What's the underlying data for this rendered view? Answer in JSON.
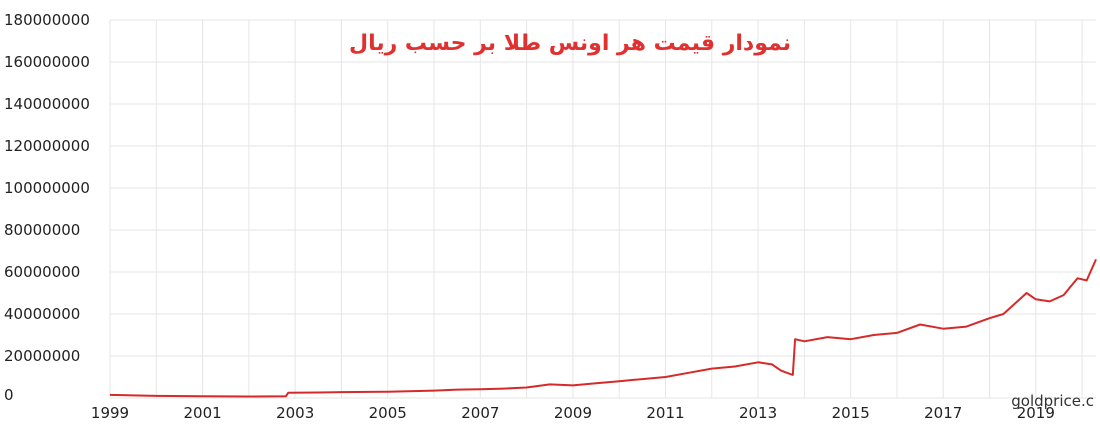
{
  "chart_data": {
    "type": "line",
    "title": "نمودار قیمت هر اونس طلا بر حسب ریال",
    "credit": "goldprice.c",
    "xlabel": "",
    "ylabel": "",
    "xlim": [
      1999,
      2020.3
    ],
    "ylim": [
      0,
      180000000
    ],
    "grid": true,
    "yticks": [
      0,
      20000000,
      40000000,
      60000000,
      80000000,
      100000000,
      120000000,
      140000000,
      160000000,
      180000000
    ],
    "ytick_labels": [
      "0",
      "20000000",
      "40000000",
      "60000000",
      "80000000",
      "100000000",
      "120000000",
      "140000000",
      "160000000",
      "180000000"
    ],
    "xticks": [
      1999,
      2001,
      2003,
      2005,
      2007,
      2009,
      2011,
      2013,
      2015,
      2017,
      2019
    ],
    "xtick_labels": [
      "1999",
      "2001",
      "2003",
      "2005",
      "2007",
      "2009",
      "2011",
      "2013",
      "2015",
      "2017",
      "2019"
    ],
    "series": [
      {
        "color": "#d62a2a",
        "x": [
          1999,
          2000,
          2001,
          2002,
          2002.8,
          2002.85,
          2003.5,
          2004,
          2005,
          2006,
          2006.5,
          2007,
          2007.5,
          2008,
          2008.5,
          2009,
          2009.5,
          2010,
          2010.5,
          2011,
          2011.5,
          2012,
          2012.5,
          2013,
          2013.3,
          2013.5,
          2013.75,
          2013.8,
          2014,
          2014.5,
          2015,
          2015.5,
          2016,
          2016.5,
          2017,
          2017.5,
          2018,
          2018.3,
          2018.5,
          2018.8,
          2019,
          2019.3,
          2019.6,
          2019.9,
          2020.1,
          2020.3
        ],
        "y": [
          1500000,
          1000000,
          800000,
          700000,
          800000,
          2500000,
          2600000,
          2800000,
          3000000,
          3500000,
          4000000,
          4200000,
          4500000,
          5000000,
          6500000,
          6000000,
          7000000,
          8000000,
          9000000,
          10000000,
          12000000,
          14000000,
          15000000,
          17000000,
          16000000,
          13000000,
          11000000,
          28000000,
          27000000,
          29000000,
          28000000,
          30000000,
          31000000,
          35000000,
          33000000,
          34000000,
          38000000,
          40000000,
          44000000,
          50000000,
          47000000,
          46000000,
          49000000,
          57000000,
          56000000,
          66000000
        ]
      }
    ]
  }
}
